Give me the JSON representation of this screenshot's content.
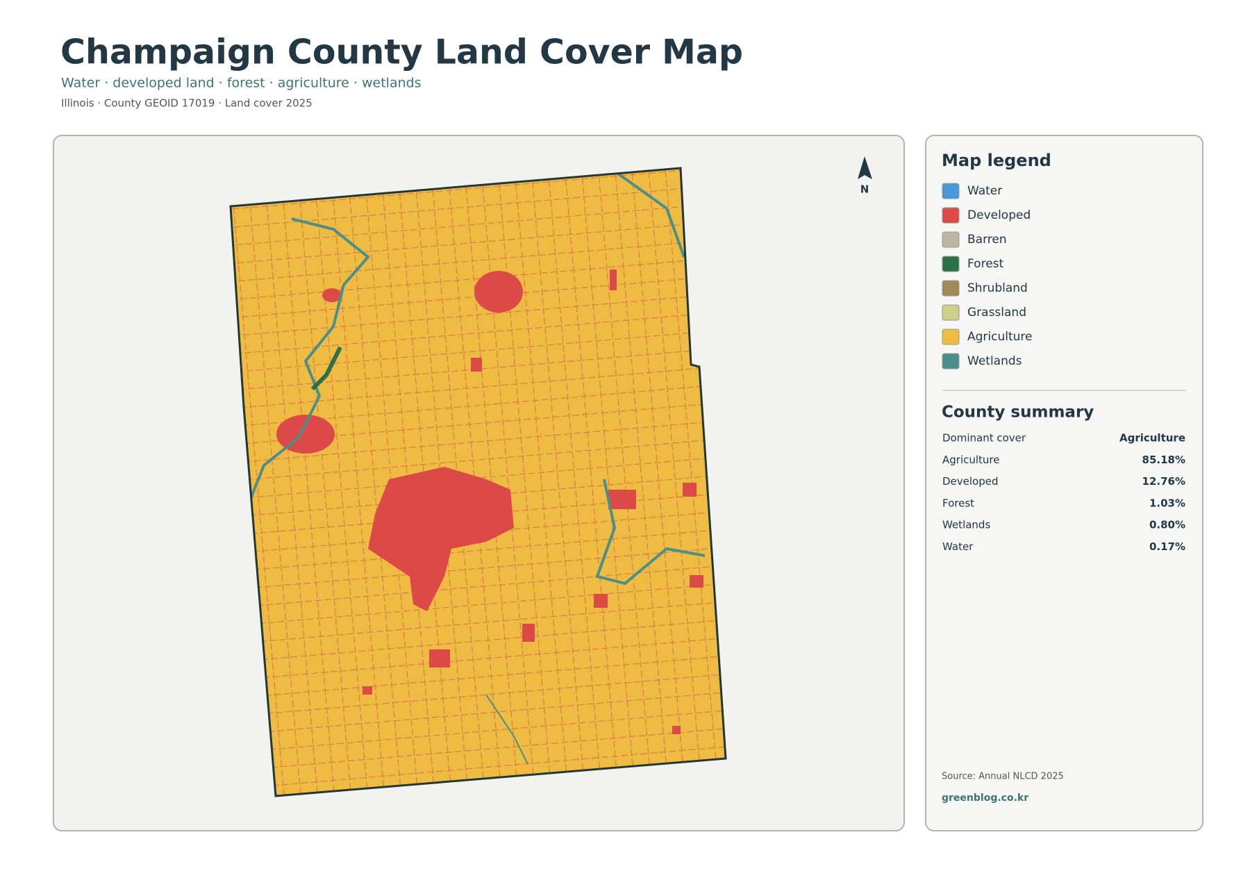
{
  "header": {
    "title": "Champaign County Land Cover Map",
    "subtitle": "Water · developed land · forest · agriculture · wetlands",
    "meta": "Illinois · County GEOID 17019 · Land cover 2025"
  },
  "map": {
    "north_label": "N"
  },
  "legend": {
    "title": "Map legend",
    "items": [
      {
        "label": "Water",
        "color": "#4a98d6"
      },
      {
        "label": "Developed",
        "color": "#dc4a48"
      },
      {
        "label": "Barren",
        "color": "#beb6a4"
      },
      {
        "label": "Forest",
        "color": "#2a7048"
      },
      {
        "label": "Shrubland",
        "color": "#a08a58"
      },
      {
        "label": "Grassland",
        "color": "#ccd088"
      },
      {
        "label": "Agriculture",
        "color": "#eebc42"
      },
      {
        "label": "Wetlands",
        "color": "#4c8e88"
      }
    ]
  },
  "summary": {
    "title": "County summary",
    "rows": [
      {
        "label": "Dominant cover",
        "value": "Agriculture"
      },
      {
        "label": "Agriculture",
        "value": "85.18%"
      },
      {
        "label": "Developed",
        "value": "12.76%"
      },
      {
        "label": "Forest",
        "value": "1.03%"
      },
      {
        "label": "Wetlands",
        "value": "0.80%"
      },
      {
        "label": "Water",
        "value": "0.17%"
      }
    ]
  },
  "footer": {
    "source": "Source: Annual NLCD 2025",
    "link": "greenblog.co.kr"
  }
}
